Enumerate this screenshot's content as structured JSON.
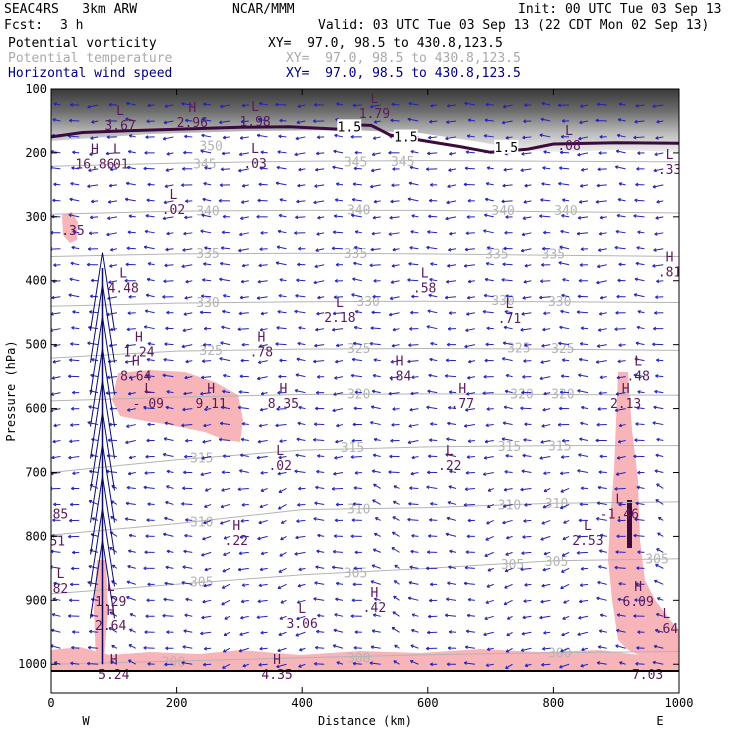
{
  "header": {
    "model": "SEAC4RS   3km ARW",
    "fcst_label": "Fcst:",
    "fcst_value": "3 h",
    "center": "NCAR/MMM",
    "init": "Init: 00 UTC Tue 03 Sep 13",
    "valid": "Valid: 03 UTC Tue 03 Sep 13 (22 CDT Mon 02 Sep 13)"
  },
  "fields": [
    {
      "name": "Potential vorticity",
      "xy": "XY=  97.0, 98.5 to 430.8,123.5",
      "color": "#000000"
    },
    {
      "name": "Potential temperature",
      "xy": "XY=  97.0, 98.5 to 430.8,123.5",
      "color": "#a9a9a9"
    },
    {
      "name": "Horizontal wind speed",
      "xy": "XY=  97.0, 98.5 to 430.8,123.5",
      "color": "#000080"
    }
  ],
  "colors": {
    "pv_line": "#3d0a3d",
    "theta": "#b4b4b4",
    "wind": "#2323b4",
    "pv_fill": "#f7b5b9",
    "hl_labels": "#5a1a5a"
  },
  "chart_data": {
    "type": "cross-section",
    "xlabel": "Distance (km)",
    "ylabel": "Pressure (hPa)",
    "xlim": [
      0,
      1000
    ],
    "ylim": [
      1045,
      100
    ],
    "x_ticks": [
      "0",
      "200",
      "400",
      "600",
      "800",
      "1000"
    ],
    "y_ticks": [
      "100",
      "200",
      "300",
      "400",
      "500",
      "600",
      "700",
      "800",
      "900",
      "1000"
    ],
    "x_ends": {
      "left": "W",
      "right": "E"
    },
    "pv_contour_label": "1.5",
    "pv_1p5_line": [
      [
        0,
        175
      ],
      [
        50,
        168
      ],
      [
        100,
        166
      ],
      [
        200,
        163
      ],
      [
        300,
        160
      ],
      [
        380,
        159
      ],
      [
        420,
        161
      ],
      [
        460,
        163
      ],
      [
        480,
        156
      ],
      [
        510,
        157
      ],
      [
        540,
        172
      ],
      [
        600,
        182
      ],
      [
        650,
        190
      ],
      [
        700,
        199
      ],
      [
        760,
        194
      ],
      [
        800,
        186
      ],
      [
        900,
        184
      ],
      [
        1000,
        185
      ]
    ],
    "theta_contours": [
      {
        "value": "345",
        "points": [
          [
            0,
            221
          ],
          [
            200,
            216
          ],
          [
            400,
            213
          ],
          [
            600,
            212
          ],
          [
            800,
            213
          ],
          [
            1000,
            214
          ]
        ]
      },
      {
        "value": "340",
        "points": [
          [
            0,
            296
          ],
          [
            200,
            291
          ],
          [
            400,
            290
          ],
          [
            600,
            290
          ],
          [
            800,
            292
          ],
          [
            1000,
            294
          ]
        ]
      },
      {
        "value": "335",
        "points": [
          [
            0,
            362
          ],
          [
            200,
            358
          ],
          [
            400,
            357
          ],
          [
            600,
            358
          ],
          [
            800,
            360
          ],
          [
            1000,
            362
          ]
        ]
      },
      {
        "value": "330",
        "points": [
          [
            0,
            440
          ],
          [
            200,
            435
          ],
          [
            400,
            433
          ],
          [
            600,
            432
          ],
          [
            800,
            433
          ],
          [
            1000,
            434
          ]
        ]
      },
      {
        "value": "325",
        "points": [
          [
            0,
            521
          ],
          [
            200,
            510
          ],
          [
            400,
            507
          ],
          [
            600,
            506
          ],
          [
            800,
            507
          ],
          [
            1000,
            509
          ]
        ]
      },
      {
        "value": "320",
        "points": [
          [
            0,
            588
          ],
          [
            200,
            582
          ],
          [
            400,
            578
          ],
          [
            600,
            577
          ],
          [
            800,
            578
          ],
          [
            1000,
            579
          ]
        ]
      },
      {
        "value": "315",
        "points": [
          [
            0,
            700
          ],
          [
            200,
            680
          ],
          [
            400,
            665
          ],
          [
            600,
            660
          ],
          [
            800,
            658
          ],
          [
            1000,
            658
          ]
        ]
      },
      {
        "value": "310",
        "points": [
          [
            0,
            798
          ],
          [
            200,
            780
          ],
          [
            400,
            758
          ],
          [
            600,
            755
          ],
          [
            800,
            748
          ],
          [
            1000,
            746
          ]
        ]
      },
      {
        "value": "305",
        "points": [
          [
            0,
            890
          ],
          [
            200,
            875
          ],
          [
            400,
            860
          ],
          [
            600,
            850
          ],
          [
            800,
            838
          ],
          [
            1000,
            835
          ]
        ]
      },
      {
        "value": "300",
        "points": [
          [
            0,
            1000
          ],
          [
            200,
            995
          ],
          [
            400,
            990
          ],
          [
            600,
            985
          ],
          [
            800,
            982
          ],
          [
            1000,
            980
          ]
        ]
      }
    ],
    "theta_labels": [
      {
        "text": "350",
        "x": 255,
        "p": 190
      },
      {
        "text": "345",
        "x": 245,
        "p": 218
      },
      {
        "text": "345",
        "x": 485,
        "p": 215
      },
      {
        "text": "345",
        "x": 560,
        "p": 214
      },
      {
        "text": "340",
        "x": 250,
        "p": 292
      },
      {
        "text": "340",
        "x": 490,
        "p": 290
      },
      {
        "text": "340",
        "x": 720,
        "p": 291
      },
      {
        "text": "340",
        "x": 820,
        "p": 291
      },
      {
        "text": "335",
        "x": 250,
        "p": 358
      },
      {
        "text": "335",
        "x": 485,
        "p": 358
      },
      {
        "text": "335",
        "x": 710,
        "p": 359
      },
      {
        "text": "335",
        "x": 800,
        "p": 359
      },
      {
        "text": "330",
        "x": 250,
        "p": 435
      },
      {
        "text": "330",
        "x": 505,
        "p": 433
      },
      {
        "text": "330",
        "x": 720,
        "p": 432
      },
      {
        "text": "330",
        "x": 810,
        "p": 433
      },
      {
        "text": "325",
        "x": 255,
        "p": 510
      },
      {
        "text": "325",
        "x": 490,
        "p": 507
      },
      {
        "text": "325",
        "x": 745,
        "p": 506
      },
      {
        "text": "325",
        "x": 815,
        "p": 507
      },
      {
        "text": "320",
        "x": 490,
        "p": 578
      },
      {
        "text": "320",
        "x": 750,
        "p": 578
      },
      {
        "text": "320",
        "x": 815,
        "p": 578
      },
      {
        "text": "315",
        "x": 240,
        "p": 678
      },
      {
        "text": "315",
        "x": 480,
        "p": 662
      },
      {
        "text": "315",
        "x": 730,
        "p": 660
      },
      {
        "text": "315",
        "x": 810,
        "p": 659
      },
      {
        "text": "310",
        "x": 240,
        "p": 778
      },
      {
        "text": "310",
        "x": 490,
        "p": 758
      },
      {
        "text": "310",
        "x": 730,
        "p": 752
      },
      {
        "text": "310",
        "x": 805,
        "p": 749
      },
      {
        "text": "305",
        "x": 240,
        "p": 872
      },
      {
        "text": "305",
        "x": 485,
        "p": 858
      },
      {
        "text": "305",
        "x": 735,
        "p": 845
      },
      {
        "text": "305",
        "x": 805,
        "p": 840
      },
      {
        "text": "305",
        "x": 965,
        "p": 836
      },
      {
        "text": "300",
        "x": 195,
        "p": 997
      },
      {
        "text": "300",
        "x": 490,
        "p": 991
      },
      {
        "text": "300",
        "x": 810,
        "p": 983
      }
    ],
    "hl_markers": [
      {
        "sym": "L",
        "val": "3.67",
        "x": 110,
        "p": 158
      },
      {
        "sym": "H",
        "val": "2.96",
        "x": 225,
        "p": 153
      },
      {
        "sym": "L",
        "val": "1.98",
        "x": 325,
        "p": 152
      },
      {
        "sym": "L",
        "val": "1.79",
        "x": 515,
        "p": 139
      },
      {
        "sym": "H",
        "val": "16.86",
        "x": 70,
        "p": 218
      },
      {
        "sym": "L",
        "val": ".01",
        "x": 105,
        "p": 218
      },
      {
        "sym": "L",
        "val": ".03",
        "x": 325,
        "p": 217
      },
      {
        "sym": "L",
        "val": ".08",
        "x": 825,
        "p": 189
      },
      {
        "sym": "L",
        "val": ".33",
        "x": 985,
        "p": 227
      },
      {
        "sym": "L",
        "val": ".02",
        "x": 195,
        "p": 289
      },
      {
        "sym": "",
        "val": ".35",
        "x": 35,
        "p": 322
      },
      {
        "sym": "H",
        "val": ".81",
        "x": 985,
        "p": 387
      },
      {
        "sym": "L",
        "val": "4.48",
        "x": 115,
        "p": 412
      },
      {
        "sym": "L",
        "val": ".58",
        "x": 595,
        "p": 412
      },
      {
        "sym": "L",
        "val": "2.18",
        "x": 460,
        "p": 458
      },
      {
        "sym": "L",
        "val": ".71",
        "x": 730,
        "p": 460
      },
      {
        "sym": "H",
        "val": "1.24",
        "x": 140,
        "p": 512
      },
      {
        "sym": "H",
        "val": ".78",
        "x": 335,
        "p": 512
      },
      {
        "sym": "H",
        "val": "8.64",
        "x": 135,
        "p": 550
      },
      {
        "sym": "H",
        "val": ".84",
        "x": 555,
        "p": 550
      },
      {
        "sym": "L",
        "val": ".48",
        "x": 935,
        "p": 550
      },
      {
        "sym": "L",
        "val": "-.09",
        "x": 155,
        "p": 593
      },
      {
        "sym": "H",
        "val": "9.11",
        "x": 255,
        "p": 593
      },
      {
        "sym": "H",
        "val": "8.35",
        "x": 370,
        "p": 593
      },
      {
        "sym": "H",
        "val": ".77",
        "x": 655,
        "p": 593
      },
      {
        "sym": "H",
        "val": "2.13",
        "x": 915,
        "p": 593
      },
      {
        "sym": "L",
        "val": ".02",
        "x": 365,
        "p": 690
      },
      {
        "sym": "L",
        "val": ".22",
        "x": 635,
        "p": 690
      },
      {
        "sym": "",
        "val": "85",
        "x": 15,
        "p": 766
      },
      {
        "sym": "L",
        "val": "-1.46",
        "x": 905,
        "p": 766
      },
      {
        "sym": "H",
        "val": ".22",
        "x": 295,
        "p": 807
      },
      {
        "sym": "L",
        "val": "2.53",
        "x": 855,
        "p": 807
      },
      {
        "sym": "",
        "val": "51",
        "x": 10,
        "p": 808
      },
      {
        "sym": "L",
        "val": "1.29",
        "x": 95,
        "p": 903
      },
      {
        "sym": "L",
        "val": "82",
        "x": 15,
        "p": 882
      },
      {
        "sym": "H",
        "val": ".42",
        "x": 515,
        "p": 912
      },
      {
        "sym": "L",
        "val": "3.06",
        "x": 400,
        "p": 937
      },
      {
        "sym": "H",
        "val": "6.09",
        "x": 935,
        "p": 903
      },
      {
        "sym": "H",
        "val": "2.64",
        "x": 95,
        "p": 940
      },
      {
        "sym": "L",
        "val": ".64",
        "x": 980,
        "p": 945
      },
      {
        "sym": "H",
        "val": "5.24",
        "x": 100,
        "p": 1017
      },
      {
        "sym": "H",
        "val": "4.35",
        "x": 360,
        "p": 1017
      },
      {
        "sym": "",
        "val": "7.03",
        "x": 950,
        "p": 1017
      }
    ]
  }
}
